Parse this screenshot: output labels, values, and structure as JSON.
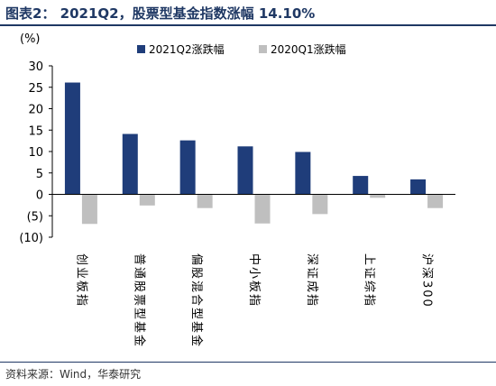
{
  "title": "图表2： 2021Q2，股票型基金指数涨幅 14.10%",
  "source": "资料来源：Wind，华泰研究",
  "chart_data": {
    "type": "bar",
    "y_unit": "(%)",
    "categories": [
      "创业板指",
      "普通股票型基金",
      "偏股混合型基金",
      "中小板指",
      "深证成指",
      "上证综指",
      "沪深300"
    ],
    "series": [
      {
        "name": "2021Q2涨跌幅",
        "color": "#1f3d7a",
        "values": [
          26.1,
          14.1,
          12.6,
          11.2,
          9.9,
          4.3,
          3.5
        ]
      },
      {
        "name": "2020Q1涨跌幅",
        "color": "#bfbfbf",
        "values": [
          -6.9,
          -2.6,
          -3.2,
          -6.8,
          -4.6,
          -0.8,
          -3.2
        ]
      }
    ],
    "ylim": [
      -10,
      30
    ],
    "yticks": [
      30,
      25,
      20,
      15,
      10,
      5,
      0,
      -5,
      -10
    ],
    "ytick_labels": [
      "30",
      "25",
      "20",
      "15",
      "10",
      "5",
      "0",
      "(5)",
      "(10)"
    ],
    "legend_position": "top",
    "grid": false
  }
}
